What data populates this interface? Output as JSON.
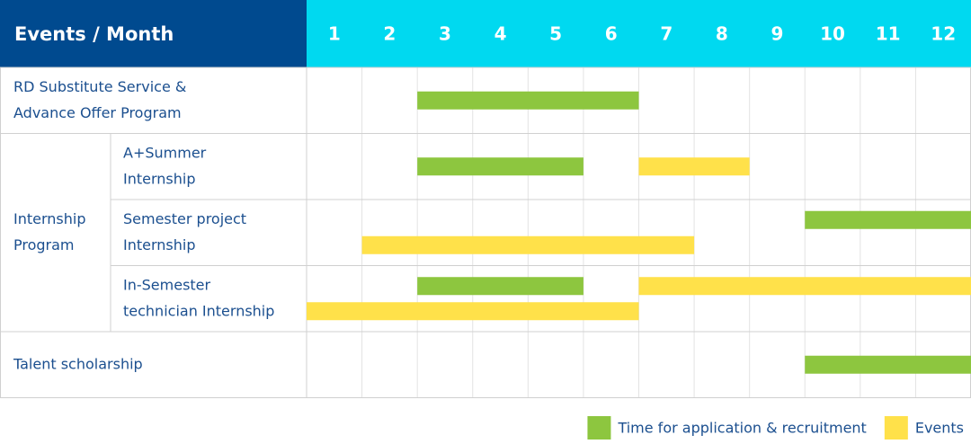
{
  "chart_data": {
    "type": "gantt",
    "corner_label": "Events / Month",
    "months": [
      1,
      2,
      3,
      4,
      5,
      6,
      7,
      8,
      9,
      10,
      11,
      12
    ],
    "series": [
      {
        "name": "Time for application & recruitment",
        "color": "#8dc63f"
      },
      {
        "name": "Events",
        "color": "#ffe14a"
      }
    ],
    "groups": [
      {
        "label": [
          "RD Substitute Service &",
          "Advance Offer Program"
        ],
        "rows": [
          {
            "lanes": [
              [
                {
                  "series": 0,
                  "start": 3,
                  "end": 6
                }
              ]
            ]
          }
        ]
      },
      {
        "label": [
          "Internship",
          "Program"
        ],
        "rows": [
          {
            "label": [
              "A+Summer",
              "Internship"
            ],
            "lanes": [
              [
                {
                  "series": 0,
                  "start": 3,
                  "end": 5
                },
                {
                  "series": 1,
                  "start": 7,
                  "end": 8
                }
              ]
            ]
          },
          {
            "label": [
              "Semester project",
              "Internship"
            ],
            "lanes": [
              [
                {
                  "series": 0,
                  "start": 10,
                  "end": 12
                }
              ],
              [
                {
                  "series": 1,
                  "start": 2,
                  "end": 7
                }
              ]
            ]
          },
          {
            "label": [
              "In-Semester",
              "technician Internship"
            ],
            "lanes": [
              [
                {
                  "series": 0,
                  "start": 3,
                  "end": 5
                },
                {
                  "series": 1,
                  "start": 7,
                  "end": 12
                }
              ],
              [
                {
                  "series": 1,
                  "start": 1,
                  "end": 6
                }
              ]
            ]
          }
        ]
      },
      {
        "label": [
          "Talent scholarship"
        ],
        "rows": [
          {
            "lanes": [
              [
                {
                  "series": 0,
                  "start": 10,
                  "end": 12
                }
              ]
            ]
          }
        ]
      }
    ]
  }
}
